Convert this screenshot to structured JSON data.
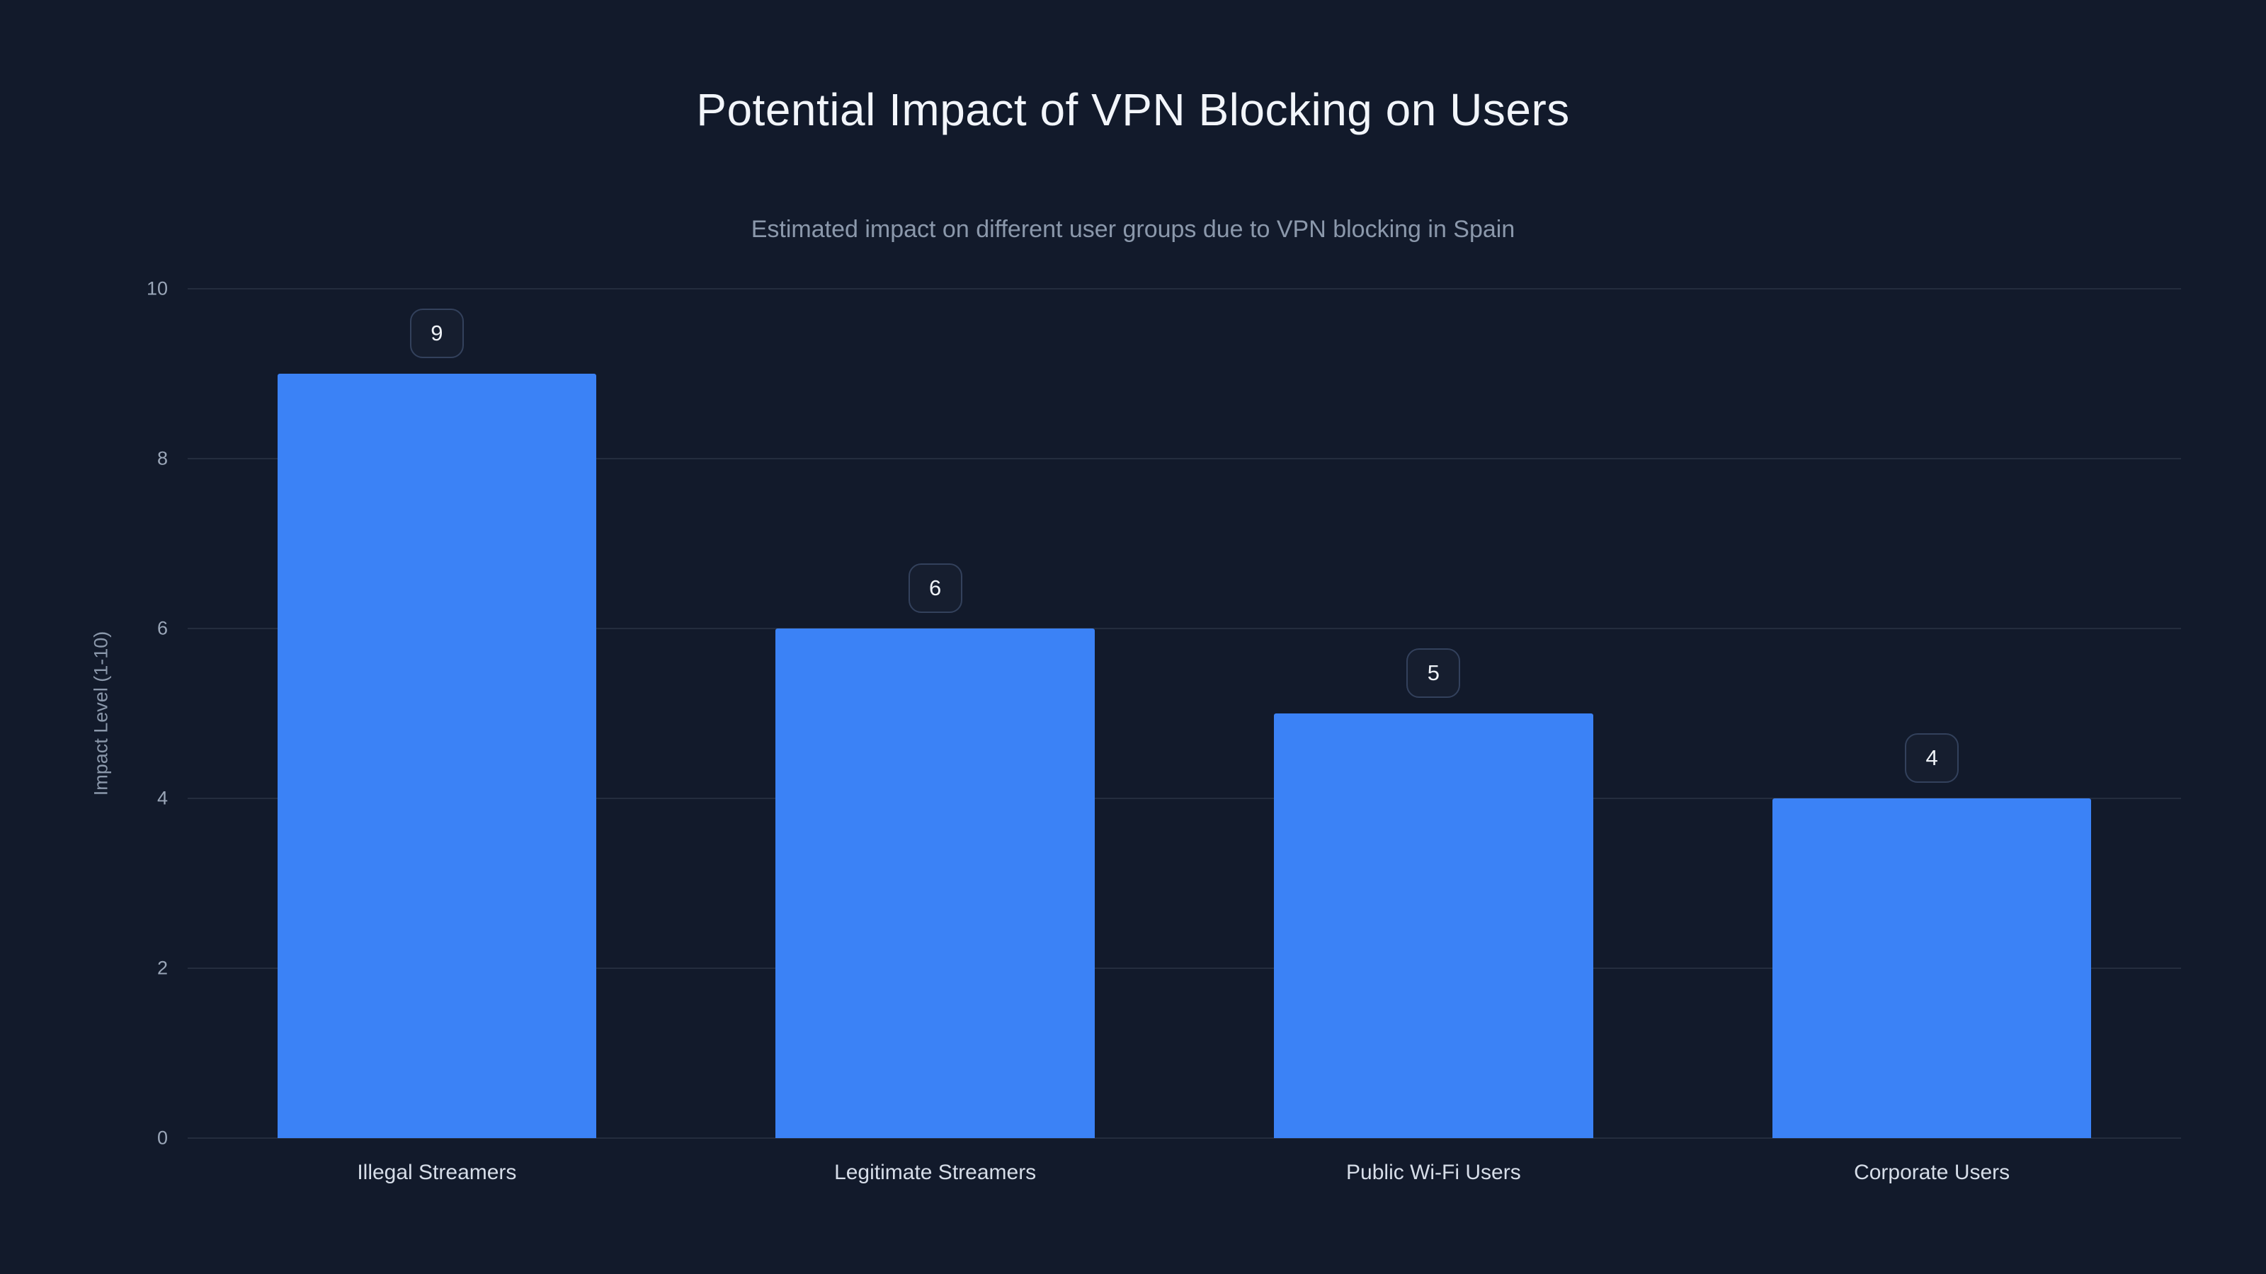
{
  "chart_data": {
    "type": "bar",
    "title": "Potential Impact of VPN Blocking on Users",
    "subtitle": "Estimated impact on different user groups due to VPN blocking in Spain",
    "xlabel": "",
    "ylabel": "Impact Level (1-10)",
    "categories": [
      "Illegal Streamers",
      "Legitimate Streamers",
      "Public Wi-Fi Users",
      "Corporate Users"
    ],
    "values": [
      9,
      6,
      5,
      4
    ],
    "value_labels": [
      "9",
      "6",
      "5",
      "4"
    ],
    "ylim": [
      0,
      10
    ],
    "yticks": [
      0,
      2,
      4,
      6,
      8,
      10
    ],
    "grid": true,
    "legend_position": "none",
    "colors": {
      "background": "#121a2b",
      "bar": "#3b82f6",
      "gridline": "rgba(148,163,184,0.14)",
      "title": "#f2f5fa",
      "subtitle": "#8b98ab",
      "tick": "#9aa6b8",
      "category": "#d6dde8",
      "badge_border": "#33415c",
      "badge_text": "#eef2f7"
    }
  }
}
